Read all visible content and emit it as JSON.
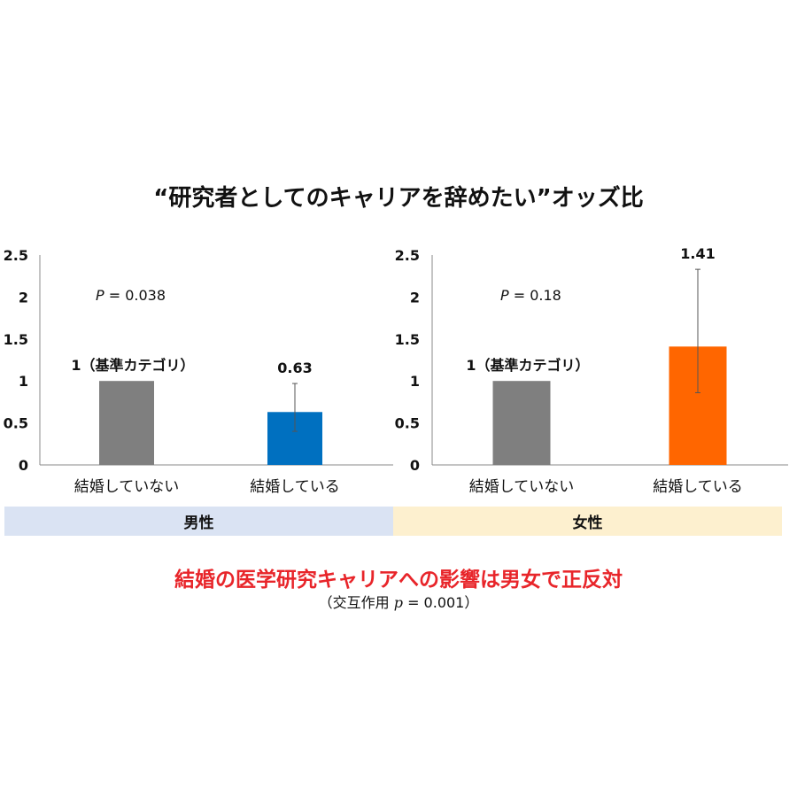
{
  "title": "“研究者としてのキャリアを辞めたい”オッズ比",
  "chart_data": [
    {
      "type": "bar",
      "group": "男性",
      "categories": [
        "結婚していない",
        "結婚している"
      ],
      "values": [
        1,
        0.63
      ],
      "value_labels": [
        "1（基準カテゴリ）",
        "0.63"
      ],
      "error_bars": [
        null,
        {
          "low": 0.4,
          "high": 0.97
        }
      ],
      "colors": [
        "#7f7f7f",
        "#0070c0"
      ],
      "ylim": [
        0,
        2.5
      ],
      "yticks": [
        "0",
        "0.5",
        "1",
        "1.5",
        "2",
        "2.5"
      ],
      "p_label": "P",
      "p_value_text": "= 0.038"
    },
    {
      "type": "bar",
      "group": "女性",
      "categories": [
        "結婚していない",
        "結婚している"
      ],
      "values": [
        1,
        1.41
      ],
      "value_labels": [
        "1（基準カテゴリ）",
        "1.41"
      ],
      "error_bars": [
        null,
        {
          "low": 0.86,
          "high": 2.33
        }
      ],
      "colors": [
        "#7f7f7f",
        "#ff6600"
      ],
      "ylim": [
        0,
        2.5
      ],
      "yticks": [
        "0",
        "0.5",
        "1",
        "1.5",
        "2",
        "2.5"
      ],
      "p_label": "P",
      "p_value_text": "= 0.18"
    }
  ],
  "groups": {
    "male": "男性",
    "female": "女性"
  },
  "conclusion": "結婚の医学研究キャリアへの影響は男女で正反対",
  "note": {
    "prefix": "（交互作用",
    "p_symbol": "p",
    "suffix": "= 0.001）"
  }
}
